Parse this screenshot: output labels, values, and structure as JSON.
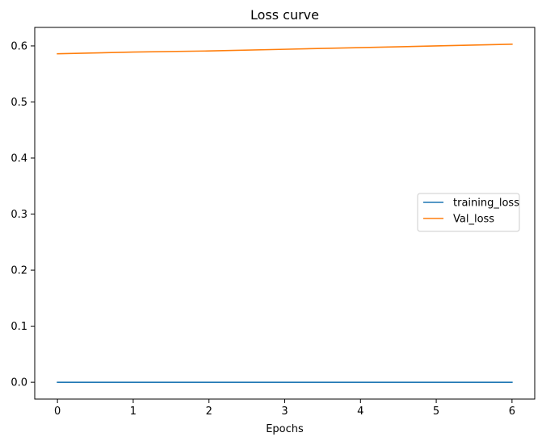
{
  "chart_data": {
    "type": "line",
    "title": "Loss curve",
    "xlabel": "Epochs",
    "ylabel": "",
    "x": [
      0,
      1,
      2,
      3,
      4,
      5,
      6
    ],
    "xlim": [
      -0.3,
      6.3
    ],
    "ylim": [
      -0.03,
      0.633
    ],
    "xticks": [
      0,
      1,
      2,
      3,
      4,
      5,
      6
    ],
    "yticks": [
      0.0,
      0.1,
      0.2,
      0.3,
      0.4,
      0.5,
      0.6
    ],
    "xtick_labels": [
      "0",
      "1",
      "2",
      "3",
      "4",
      "5",
      "6"
    ],
    "ytick_labels": [
      "0.0",
      "0.1",
      "0.2",
      "0.3",
      "0.4",
      "0.5",
      "0.6"
    ],
    "grid": false,
    "legend_position": "center-right",
    "series": [
      {
        "name": "training_loss",
        "color": "#1f77b4",
        "values": [
          0.0,
          0.0,
          0.0,
          0.0,
          0.0,
          0.0,
          0.0
        ]
      },
      {
        "name": "Val_loss",
        "color": "#ff7f0e",
        "values": [
          0.586,
          0.589,
          0.591,
          0.594,
          0.597,
          0.6,
          0.603
        ]
      }
    ]
  }
}
